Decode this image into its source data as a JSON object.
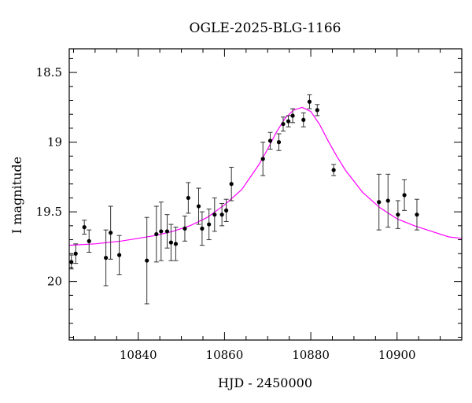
{
  "chart_data": {
    "type": "scatter",
    "title": "OGLE-2025-BLG-1166",
    "xlabel": "HJD - 2450000",
    "ylabel": "I magnitude",
    "xlim": [
      10824,
      10915
    ],
    "ylim": [
      20.42,
      18.33
    ],
    "y_inverted": true,
    "grid": false,
    "x_ticks": [
      10840,
      10860,
      10880,
      10900
    ],
    "x_tick_labels": [
      "10840",
      "10860",
      "10880",
      "10900"
    ],
    "y_ticks": [
      18.5,
      19,
      19.5,
      20
    ],
    "y_tick_labels": [
      "18.5",
      "19",
      "19.5",
      "20"
    ],
    "colors": {
      "points": "#000000",
      "model": "#ff00ff"
    },
    "points": [
      {
        "x": 10824.5,
        "y": 19.86,
        "err": 0.05
      },
      {
        "x": 10825.5,
        "y": 19.8,
        "err": 0.07
      },
      {
        "x": 10827.5,
        "y": 19.61,
        "err": 0.05
      },
      {
        "x": 10828.6,
        "y": 19.71,
        "err": 0.08
      },
      {
        "x": 10832.5,
        "y": 19.83,
        "err": 0.2
      },
      {
        "x": 10833.6,
        "y": 19.65,
        "err": 0.19
      },
      {
        "x": 10835.6,
        "y": 19.81,
        "err": 0.14
      },
      {
        "x": 10842.0,
        "y": 19.85,
        "err": 0.31
      },
      {
        "x": 10844.2,
        "y": 19.66,
        "err": 0.2
      },
      {
        "x": 10845.3,
        "y": 19.64,
        "err": 0.21
      },
      {
        "x": 10846.7,
        "y": 19.64,
        "err": 0.12
      },
      {
        "x": 10847.6,
        "y": 19.72,
        "err": 0.13
      },
      {
        "x": 10848.7,
        "y": 19.73,
        "err": 0.12
      },
      {
        "x": 10850.8,
        "y": 19.62,
        "err": 0.09
      },
      {
        "x": 10851.6,
        "y": 19.4,
        "err": 0.11
      },
      {
        "x": 10854.0,
        "y": 19.46,
        "err": 0.13
      },
      {
        "x": 10854.8,
        "y": 19.62,
        "err": 0.12
      },
      {
        "x": 10856.4,
        "y": 19.59,
        "err": 0.11
      },
      {
        "x": 10857.7,
        "y": 19.52,
        "err": 0.12
      },
      {
        "x": 10859.4,
        "y": 19.52,
        "err": 0.08
      },
      {
        "x": 10860.4,
        "y": 19.49,
        "err": 0.08
      },
      {
        "x": 10861.6,
        "y": 19.3,
        "err": 0.12
      },
      {
        "x": 10868.9,
        "y": 19.12,
        "err": 0.12
      },
      {
        "x": 10870.6,
        "y": 18.99,
        "err": 0.06
      },
      {
        "x": 10872.6,
        "y": 19.0,
        "err": 0.06
      },
      {
        "x": 10873.6,
        "y": 18.87,
        "err": 0.05
      },
      {
        "x": 10874.8,
        "y": 18.85,
        "err": 0.04
      },
      {
        "x": 10875.8,
        "y": 18.81,
        "err": 0.05
      },
      {
        "x": 10878.3,
        "y": 18.84,
        "err": 0.05
      },
      {
        "x": 10879.7,
        "y": 18.71,
        "err": 0.05
      },
      {
        "x": 10881.5,
        "y": 18.77,
        "err": 0.04
      },
      {
        "x": 10885.3,
        "y": 19.2,
        "err": 0.04
      },
      {
        "x": 10895.8,
        "y": 19.43,
        "err": 0.2
      },
      {
        "x": 10897.9,
        "y": 19.42,
        "err": 0.19
      },
      {
        "x": 10900.2,
        "y": 19.52,
        "err": 0.1
      },
      {
        "x": 10901.7,
        "y": 19.38,
        "err": 0.11
      },
      {
        "x": 10904.6,
        "y": 19.52,
        "err": 0.11
      }
    ],
    "model": {
      "type": "curve",
      "x": [
        10824,
        10830,
        10836,
        10840,
        10844,
        10848,
        10852,
        10856,
        10860,
        10864,
        10868,
        10870,
        10872,
        10874,
        10876,
        10878,
        10880,
        10882,
        10884,
        10886,
        10888,
        10892,
        10896,
        10900,
        10904,
        10908,
        10912,
        10915
      ],
      "y": [
        19.74,
        19.73,
        19.71,
        19.69,
        19.67,
        19.64,
        19.6,
        19.54,
        19.45,
        19.34,
        19.16,
        19.05,
        18.93,
        18.83,
        18.77,
        18.75,
        18.78,
        18.87,
        18.99,
        19.1,
        19.2,
        19.36,
        19.47,
        19.55,
        19.6,
        19.64,
        19.68,
        19.69
      ]
    }
  }
}
